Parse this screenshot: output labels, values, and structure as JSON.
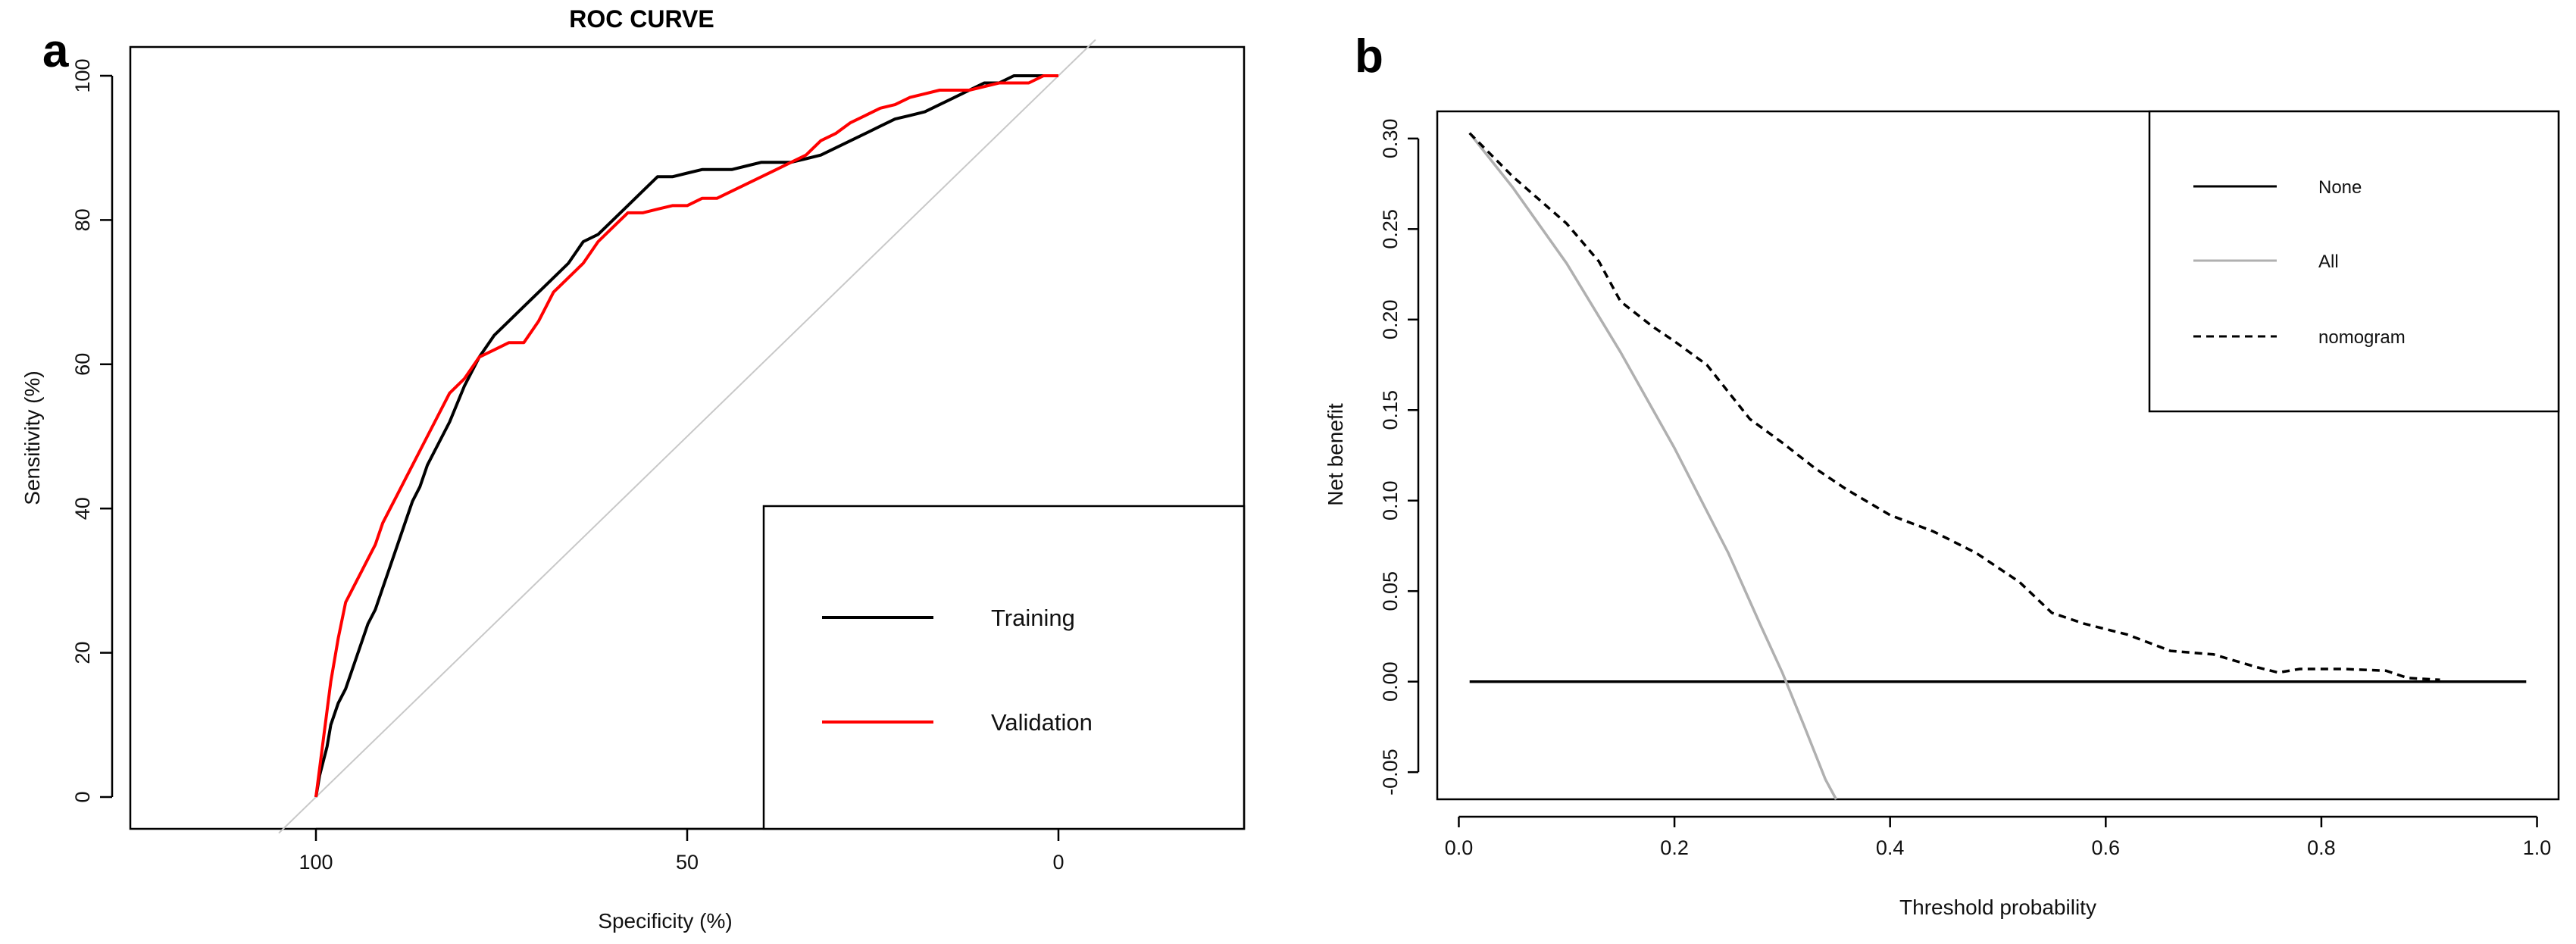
{
  "chart_data": [
    {
      "panel": "a",
      "type": "line",
      "title": "ROC CURVE",
      "xlabel": "Specificity (%)",
      "ylabel": "Sensitivity (%)",
      "xlim": [
        125,
        -25
      ],
      "ylim": [
        0,
        100
      ],
      "xticks": [
        100,
        50,
        0
      ],
      "yticks": [
        0,
        20,
        40,
        60,
        80,
        100
      ],
      "legend": {
        "placement": "bottom-right",
        "entries": [
          "Training",
          "Validation"
        ]
      },
      "reference_line": {
        "x": [
          105,
          -5
        ],
        "y": [
          -5,
          105
        ],
        "color": "#c8c8c8"
      },
      "series": [
        {
          "name": "Training",
          "color": "#000000",
          "x": [
            100,
            99.5,
            99,
            98.5,
            98,
            97,
            96,
            95,
            94,
            93,
            92,
            91,
            90,
            89,
            88,
            87,
            86,
            85,
            84,
            82,
            80,
            78,
            76,
            74,
            72,
            70,
            68,
            66,
            64,
            62,
            60,
            58,
            56,
            54,
            52,
            50,
            48,
            46,
            44,
            42,
            40,
            38,
            36,
            34,
            32,
            30,
            28,
            26,
            24,
            22,
            20,
            18,
            16,
            14,
            12,
            10,
            8,
            6,
            4,
            2,
            0
          ],
          "y": [
            0,
            3,
            5,
            7,
            10,
            13,
            15,
            18,
            21,
            24,
            26,
            29,
            32,
            35,
            38,
            41,
            43,
            46,
            48,
            52,
            57,
            61,
            64,
            66,
            68,
            70,
            72,
            74,
            77,
            78,
            80,
            82,
            84,
            86,
            86,
            86.5,
            87,
            87,
            87,
            87.5,
            88,
            88,
            88,
            88.5,
            89,
            90,
            91,
            92,
            93,
            94,
            94.5,
            95,
            96,
            97,
            98,
            99,
            99,
            100,
            100,
            100,
            100
          ]
        },
        {
          "name": "Validation",
          "color": "#ff0000",
          "x": [
            100,
            99.5,
            99,
            98.5,
            98,
            97,
            96,
            95,
            94,
            93,
            92,
            91,
            90,
            89,
            88,
            87,
            86,
            85,
            84,
            82,
            80,
            78,
            76,
            74,
            72,
            70,
            68,
            66,
            64,
            62,
            60,
            58,
            56,
            54,
            52,
            50,
            48,
            46,
            44,
            42,
            40,
            38,
            36,
            34,
            32,
            30,
            28,
            26,
            24,
            22,
            20,
            18,
            16,
            14,
            12,
            10,
            8,
            6,
            4,
            2,
            0
          ],
          "y": [
            0,
            4,
            8,
            12,
            16,
            22,
            27,
            29,
            31,
            33,
            35,
            38,
            40,
            42,
            44,
            46,
            48,
            50,
            52,
            56,
            58,
            61,
            62,
            63,
            63,
            66,
            70,
            72,
            74,
            77,
            79,
            81,
            81,
            81.5,
            82,
            82,
            83,
            83,
            84,
            85,
            86,
            87,
            88,
            89,
            91,
            92,
            93.5,
            94.5,
            95.5,
            96,
            97,
            97.5,
            98,
            98,
            98,
            98.5,
            99,
            99,
            99,
            100,
            100
          ]
        }
      ]
    },
    {
      "panel": "b",
      "type": "line",
      "title": "",
      "xlabel": "Threshold probability",
      "ylabel": "Net benefit",
      "xlim": [
        -0.02,
        1.02
      ],
      "ylim": [
        -0.065,
        0.315
      ],
      "xticks": [
        "0.0",
        "0.2",
        "0.4",
        "0.6",
        "0.8",
        "1.0"
      ],
      "yticks": [
        "-0.05",
        "0.00",
        "0.05",
        "0.10",
        "0.15",
        "0.20",
        "0.25",
        "0.30"
      ],
      "legend": {
        "placement": "top-right",
        "entries": [
          "None",
          "All",
          "nomogram"
        ]
      },
      "series": [
        {
          "name": "None",
          "color": "#000000",
          "style": "solid",
          "x": [
            0.01,
            0.99
          ],
          "y": [
            0.0,
            0.0
          ]
        },
        {
          "name": "All",
          "color": "#b0b0b0",
          "style": "solid",
          "x": [
            0.01,
            0.05,
            0.1,
            0.15,
            0.2,
            0.25,
            0.28,
            0.3,
            0.32,
            0.34,
            0.35
          ],
          "y": [
            0.303,
            0.273,
            0.231,
            0.182,
            0.129,
            0.071,
            0.031,
            0.005,
            -0.024,
            -0.054,
            -0.065
          ]
        },
        {
          "name": "nomogram",
          "color": "#000000",
          "style": "dashed",
          "x": [
            0.01,
            0.05,
            0.1,
            0.13,
            0.15,
            0.18,
            0.2,
            0.23,
            0.25,
            0.27,
            0.3,
            0.33,
            0.36,
            0.4,
            0.44,
            0.48,
            0.52,
            0.55,
            0.58,
            0.62,
            0.66,
            0.7,
            0.74,
            0.76,
            0.78,
            0.82,
            0.86,
            0.88,
            0.91
          ],
          "y": [
            0.303,
            0.279,
            0.253,
            0.232,
            0.21,
            0.196,
            0.188,
            0.175,
            0.16,
            0.145,
            0.132,
            0.118,
            0.106,
            0.092,
            0.083,
            0.071,
            0.055,
            0.038,
            0.032,
            0.026,
            0.017,
            0.015,
            0.008,
            0.005,
            0.007,
            0.007,
            0.006,
            0.002,
            0.001
          ]
        }
      ]
    }
  ]
}
